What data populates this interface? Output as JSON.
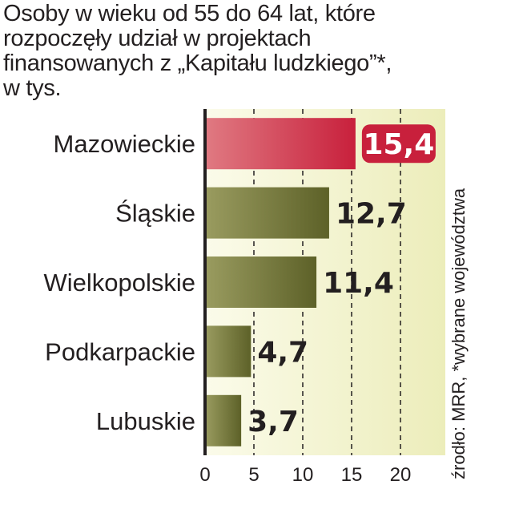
{
  "chart_data": {
    "type": "bar",
    "orientation": "horizontal",
    "title_lines": [
      "Osoby w wieku od 55 do 64 lat, które",
      "rozpoczęły udział w projektach",
      "finansowanych z „Kapitału ludzkiego”*,",
      "w tys."
    ],
    "categories": [
      "Mazowieckie",
      "Śląskie",
      "Wielkopolskie",
      "Podkarpackie",
      "Lubuskie"
    ],
    "values": [
      15.4,
      12.7,
      11.4,
      4.7,
      3.7
    ],
    "value_labels": [
      "15,4",
      "12,7",
      "11,4",
      "4,7",
      "3,7"
    ],
    "highlight_index": 0,
    "xlim": [
      0,
      20
    ],
    "xticks": [
      "0",
      "5",
      "10",
      "15",
      "20"
    ],
    "grid": "dashed-vertical",
    "source_note": "źrodło: MRR, *wybrane województwa",
    "colors": {
      "bar": "#6e7234",
      "highlight": "#c8203c",
      "background": "#f1f2c8",
      "grid": "#231f20",
      "text": "#231f20"
    }
  }
}
